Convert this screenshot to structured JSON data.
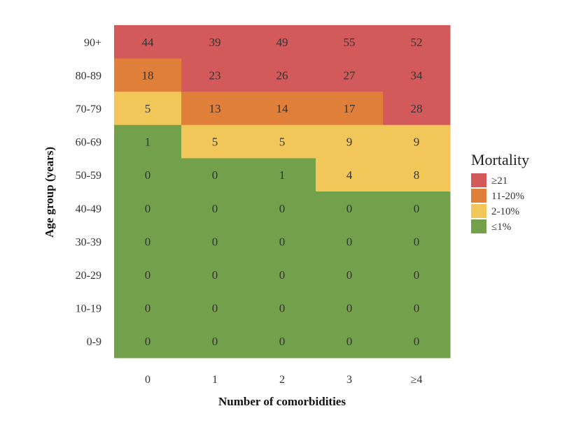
{
  "chart_data": {
    "type": "heatmap",
    "xlabel": "Number of comorbidities",
    "ylabel": "Age group (years)",
    "x_categories": [
      "0",
      "1",
      "2",
      "3",
      "≥4"
    ],
    "y_categories": [
      "90+",
      "80-89",
      "70-79",
      "60-69",
      "50-59",
      "40-49",
      "30-39",
      "20-29",
      "10-19",
      "0-9"
    ],
    "values": [
      [
        44,
        39,
        49,
        55,
        52
      ],
      [
        18,
        23,
        26,
        27,
        34
      ],
      [
        5,
        13,
        14,
        17,
        28
      ],
      [
        1,
        5,
        5,
        9,
        9
      ],
      [
        0,
        0,
        1,
        4,
        8
      ],
      [
        0,
        0,
        0,
        0,
        0
      ],
      [
        0,
        0,
        0,
        0,
        0
      ],
      [
        0,
        0,
        0,
        0,
        0
      ],
      [
        0,
        0,
        0,
        0,
        0
      ],
      [
        0,
        0,
        0,
        0,
        0
      ]
    ],
    "categories_grid": [
      [
        "≥21",
        "≥21",
        "≥21",
        "≥21",
        "≥21"
      ],
      [
        "11-20%",
        "≥21",
        "≥21",
        "≥21",
        "≥21"
      ],
      [
        "2-10%",
        "11-20%",
        "11-20%",
        "11-20%",
        "≥21"
      ],
      [
        "≤1%",
        "2-10%",
        "2-10%",
        "2-10%",
        "2-10%"
      ],
      [
        "≤1%",
        "≤1%",
        "≤1%",
        "2-10%",
        "2-10%"
      ],
      [
        "≤1%",
        "≤1%",
        "≤1%",
        "≤1%",
        "≤1%"
      ],
      [
        "≤1%",
        "≤1%",
        "≤1%",
        "≤1%",
        "≤1%"
      ],
      [
        "≤1%",
        "≤1%",
        "≤1%",
        "≤1%",
        "≤1%"
      ],
      [
        "≤1%",
        "≤1%",
        "≤1%",
        "≤1%",
        "≤1%"
      ],
      [
        "≤1%",
        "≤1%",
        "≤1%",
        "≤1%",
        "≤1%"
      ]
    ],
    "legend": {
      "title": "Mortality",
      "placement": "right",
      "items": [
        {
          "label": "≥21",
          "color": "#d35a5a"
        },
        {
          "label": "11-20%",
          "color": "#e07f3a"
        },
        {
          "label": "2-10%",
          "color": "#f2c75a"
        },
        {
          "label": "≤1%",
          "color": "#73a04a"
        }
      ]
    },
    "grid": false
  }
}
